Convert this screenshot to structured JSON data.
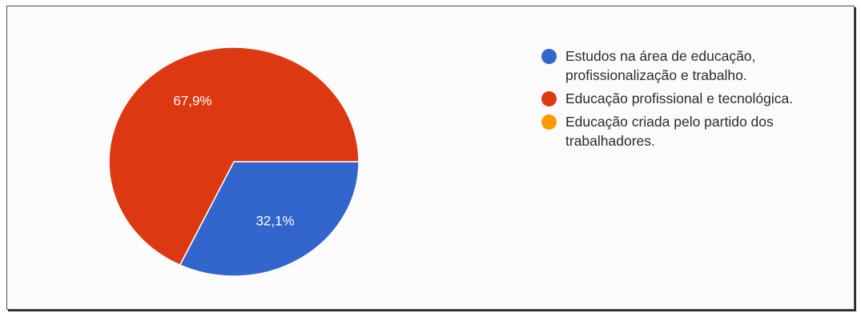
{
  "chart_data": {
    "type": "pie",
    "series": [
      {
        "name": "Estudos na área de educação, profissionalização e trabalho.",
        "value": 32.1,
        "label": "32,1%",
        "color": "#3366cc"
      },
      {
        "name": "Educação profissional e tecnológica.",
        "value": 67.9,
        "label": "67,9%",
        "color": "#dc3912"
      },
      {
        "name": "Educação criada pelo partido dos trabalhadores.",
        "value": 0,
        "label": "",
        "color": "#ff9900"
      }
    ],
    "legend_position": "right",
    "start_angle_deg": 0,
    "direction": "clockwise"
  },
  "legend": {
    "items": [
      {
        "label": "Estudos na área de educação,\nprofissionalização e trabalho.",
        "color": "#3366cc"
      },
      {
        "label": "Educação profissional e tecnológica.",
        "color": "#dc3912"
      },
      {
        "label": "Educação criada pelo partido dos\ntrabalhadores.",
        "color": "#ff9900"
      }
    ]
  }
}
